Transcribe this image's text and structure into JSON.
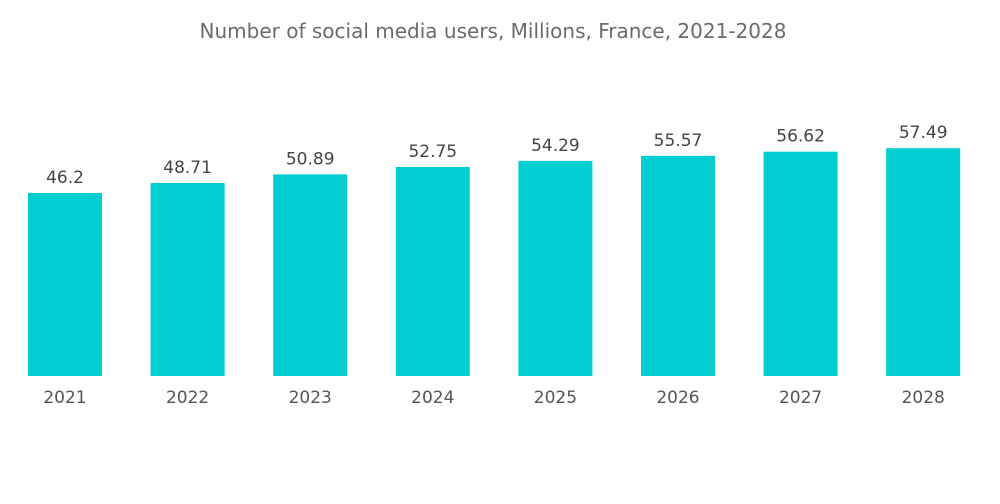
{
  "chart_data": {
    "type": "bar",
    "title": "Number of social media users, Millions, France, 2021-2028",
    "xlabel": "",
    "ylabel": "",
    "categories": [
      "2021",
      "2022",
      "2023",
      "2024",
      "2025",
      "2026",
      "2027",
      "2028"
    ],
    "values": [
      46.2,
      48.71,
      50.89,
      52.75,
      54.29,
      55.57,
      56.62,
      57.49
    ],
    "data_labels": [
      "46.2",
      "48.71",
      "50.89",
      "52.75",
      "54.29",
      "55.57",
      "56.62",
      "57.49"
    ],
    "ylim": [
      0,
      60
    ],
    "grid": false,
    "legend": "none",
    "bar_color": "#00CED1"
  }
}
